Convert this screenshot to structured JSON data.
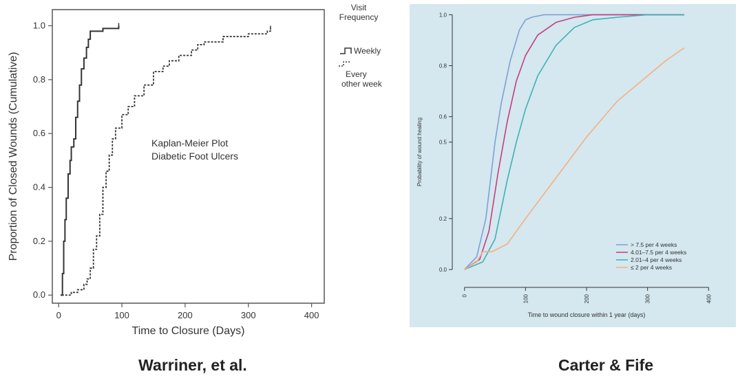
{
  "captions": {
    "left": "Warriner, et al.",
    "right": "Carter & Fife"
  },
  "chart_data": [
    {
      "type": "line",
      "step": true,
      "ylabel": "Proportion of Closed Wounds (Cumulative)",
      "xlabel": "Time to Closure (Days)",
      "xlim": [
        -10,
        420
      ],
      "ylim": [
        -0.03,
        1.06
      ],
      "xticks": [
        0,
        100,
        200,
        300,
        400
      ],
      "yticks": [
        0.0,
        0.2,
        0.4,
        0.6,
        0.8,
        1.0
      ],
      "xtick_labels": [
        "0",
        "100",
        "200",
        "300",
        "400"
      ],
      "ytick_labels": [
        "0.0",
        "0.2",
        "0.4",
        "0.6",
        "0.8",
        "1.0"
      ],
      "annotation": [
        "Kaplan-Meier Plot",
        "Diabetic Foot Ulcers"
      ],
      "legend_title": [
        "Visit",
        "Frequency"
      ],
      "grid": false,
      "series": [
        {
          "name": "Weekly",
          "style": "solid",
          "color": "#333333",
          "x": [
            3,
            6,
            8,
            10,
            12,
            15,
            18,
            20,
            24,
            27,
            30,
            33,
            36,
            40,
            44,
            47,
            50,
            55,
            60,
            70,
            85,
            95
          ],
          "y": [
            0.0,
            0.08,
            0.2,
            0.28,
            0.36,
            0.45,
            0.5,
            0.55,
            0.58,
            0.66,
            0.72,
            0.78,
            0.84,
            0.88,
            0.92,
            0.95,
            0.98,
            0.98,
            0.98,
            0.99,
            0.99,
            1.0
          ]
        },
        {
          "name": "Every other week",
          "style": "dashed",
          "color": "#333333",
          "x": [
            5,
            20,
            30,
            40,
            45,
            50,
            55,
            60,
            65,
            70,
            75,
            80,
            85,
            90,
            100,
            110,
            120,
            135,
            150,
            165,
            175,
            190,
            210,
            220,
            230,
            260,
            300,
            330,
            335
          ],
          "y": [
            0.0,
            0.01,
            0.02,
            0.04,
            0.06,
            0.1,
            0.17,
            0.22,
            0.3,
            0.4,
            0.46,
            0.52,
            0.58,
            0.62,
            0.67,
            0.7,
            0.74,
            0.78,
            0.83,
            0.85,
            0.87,
            0.89,
            0.91,
            0.93,
            0.94,
            0.96,
            0.97,
            0.98,
            0.99
          ]
        }
      ]
    },
    {
      "type": "line",
      "ylabel": "Probability of wound healing",
      "xlabel": "Time to wound closure within 1 year (days)",
      "xlim": [
        -20,
        420
      ],
      "ylim": [
        -0.07,
        1.02
      ],
      "xticks": [
        0,
        100,
        200,
        300,
        400
      ],
      "yticks": [
        0.0,
        0.2,
        0.5,
        0.6,
        0.8,
        1.0
      ],
      "xtick_labels": [
        "0",
        "100",
        "200",
        "300",
        "400"
      ],
      "ytick_labels": [
        "0.0",
        "0.2",
        "0.5",
        "0.6",
        "0.8",
        "1.0"
      ],
      "grid": false,
      "legend_position": "bottom-right",
      "series": [
        {
          "name": "> 7.5 per 4 weeks",
          "color": "#7f9fd6",
          "x": [
            0,
            20,
            35,
            50,
            60,
            75,
            90,
            100,
            110,
            130,
            150,
            180,
            250,
            360
          ],
          "y": [
            0.0,
            0.05,
            0.2,
            0.5,
            0.65,
            0.82,
            0.94,
            0.98,
            0.99,
            1.0,
            1.0,
            1.0,
            1.0,
            1.0
          ]
        },
        {
          "name": "4.01–7.5 per 4 weeks",
          "color": "#c03f7e",
          "x": [
            0,
            25,
            40,
            55,
            70,
            85,
            100,
            120,
            150,
            180,
            210,
            250,
            360
          ],
          "y": [
            0.0,
            0.04,
            0.15,
            0.38,
            0.58,
            0.74,
            0.84,
            0.92,
            0.97,
            0.99,
            1.0,
            1.0,
            1.0
          ]
        },
        {
          "name": "2.01–4 per 4 weeks",
          "color": "#3ab3b1",
          "x": [
            0,
            30,
            50,
            70,
            85,
            100,
            120,
            150,
            180,
            210,
            250,
            300,
            360
          ],
          "y": [
            0.0,
            0.03,
            0.12,
            0.35,
            0.5,
            0.63,
            0.76,
            0.88,
            0.95,
            0.98,
            0.99,
            1.0,
            1.0
          ]
        },
        {
          "name": "≤ 2 per 4 weeks",
          "color": "#f5b07d",
          "x": [
            0,
            20,
            30,
            45,
            70,
            100,
            150,
            200,
            250,
            300,
            330,
            360
          ],
          "y": [
            0.0,
            0.03,
            0.07,
            0.07,
            0.1,
            0.2,
            0.36,
            0.52,
            0.66,
            0.76,
            0.82,
            0.87
          ]
        }
      ]
    }
  ]
}
